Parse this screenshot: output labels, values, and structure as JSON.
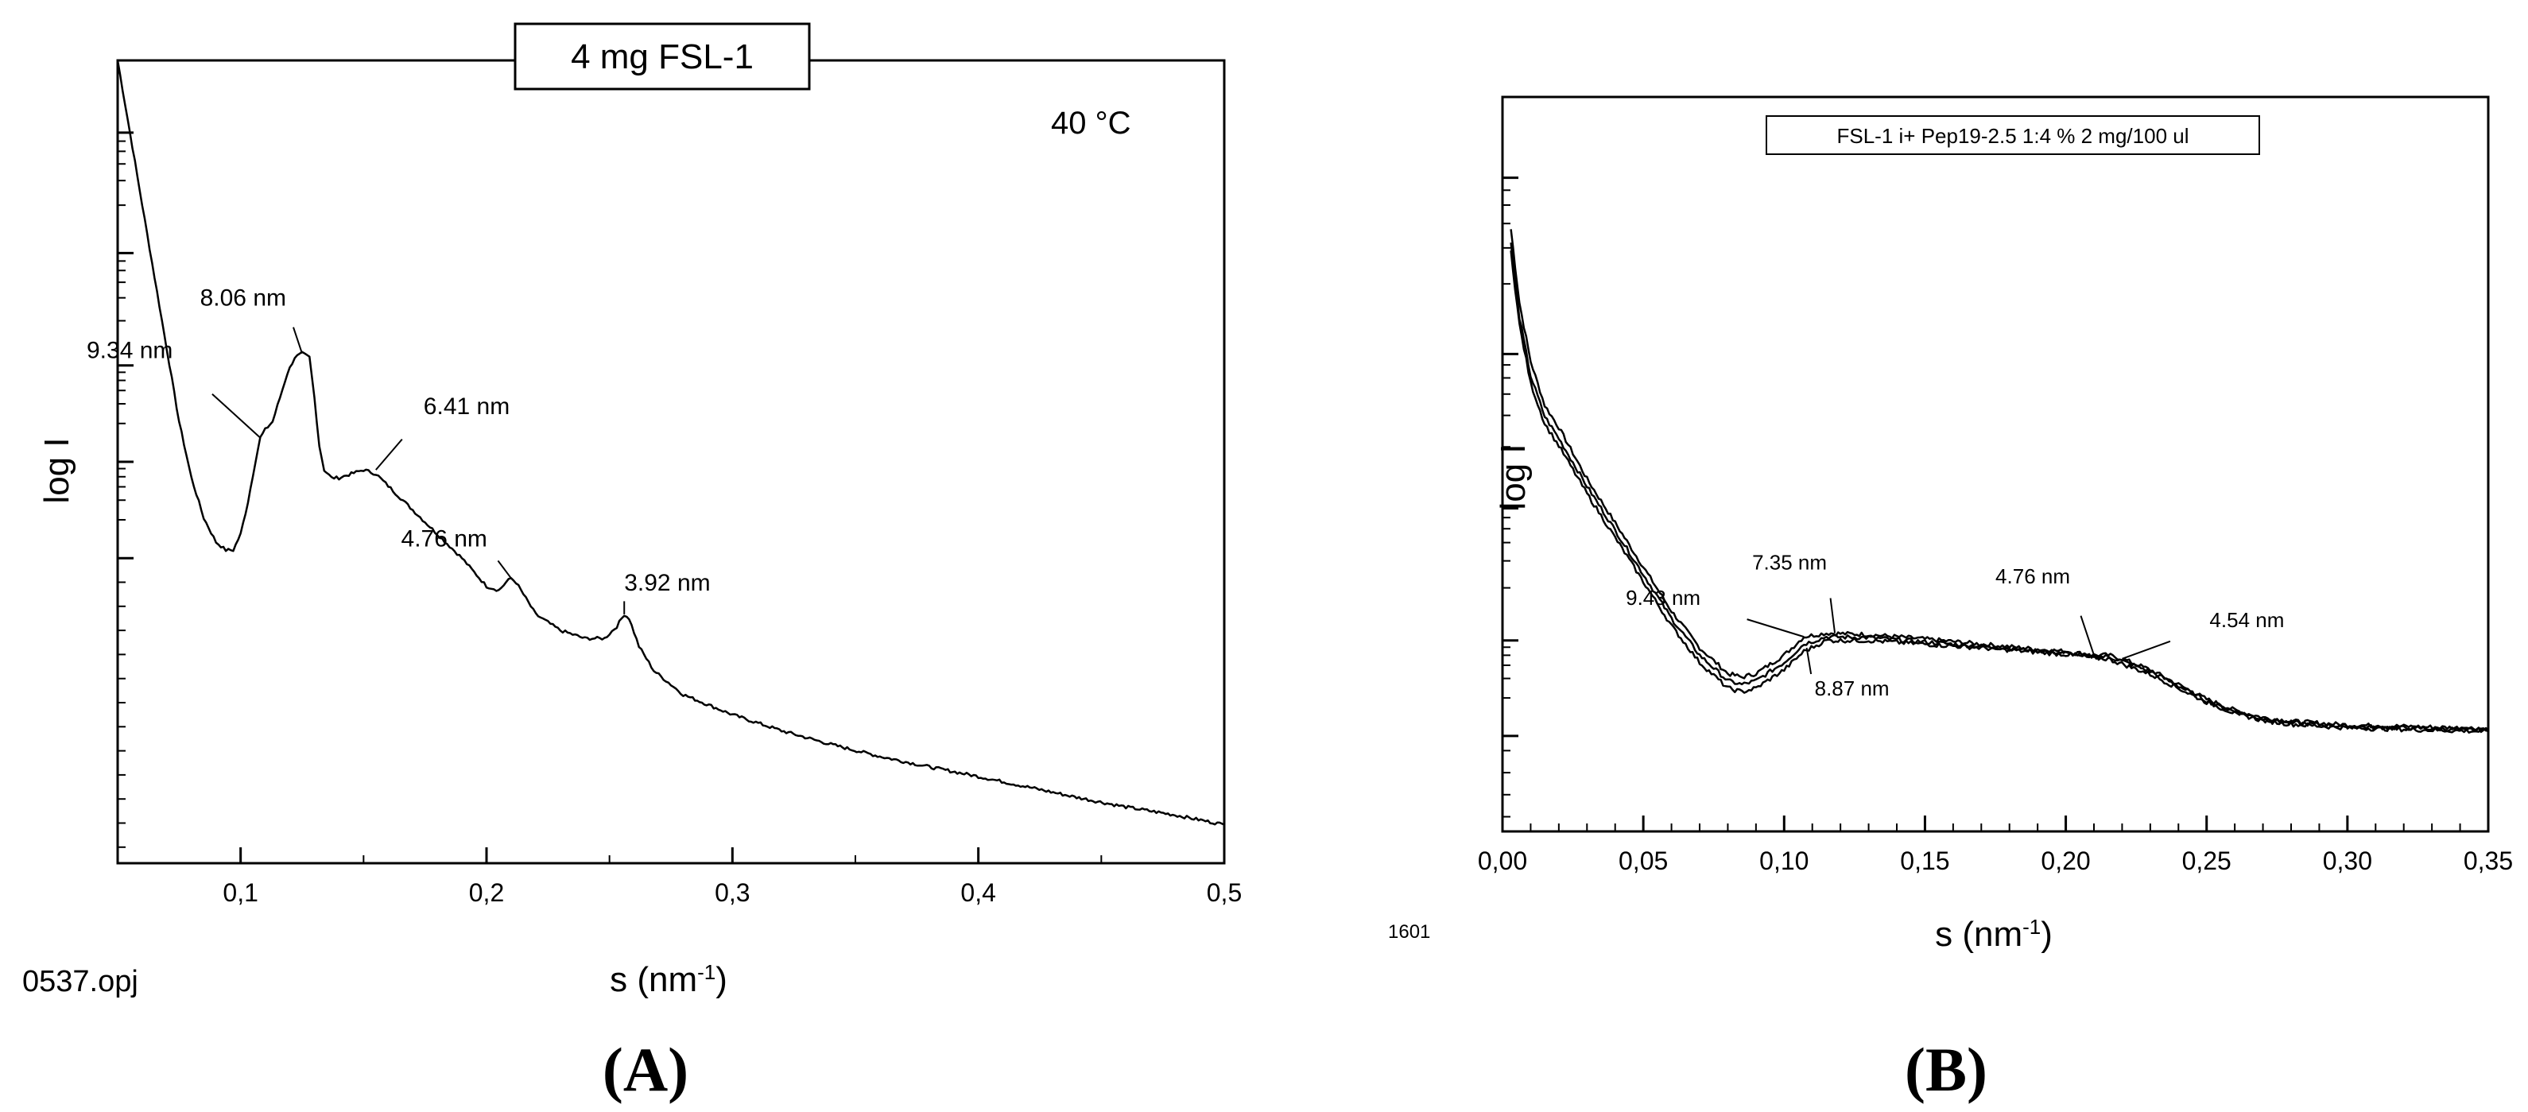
{
  "chart_data": [
    {
      "panel": "(A)",
      "type": "line",
      "title": "4 mg FSL-1",
      "temperature_note": "40 °C",
      "file_note": "0537.opj",
      "xlabel_main": "s (nm",
      "xlabel_sup": "-1",
      "xlabel_end": ")",
      "ylabel": "log I",
      "xlim": [
        0.05,
        0.5
      ],
      "ylim": [
        0,
        1
      ],
      "x_ticks": [
        {
          "value": 0.1,
          "label": "0,1"
        },
        {
          "value": 0.2,
          "label": "0,2"
        },
        {
          "value": 0.3,
          "label": "0,3"
        },
        {
          "value": 0.4,
          "label": "0,4"
        },
        {
          "value": 0.5,
          "label": "0,5"
        }
      ],
      "y_ticks_major": [
        0.38,
        0.5,
        0.62,
        0.76,
        0.91
      ],
      "series": [
        {
          "x": [
            0.05,
            0.055,
            0.06,
            0.065,
            0.07,
            0.075,
            0.08,
            0.085,
            0.09,
            0.094,
            0.097,
            0.1,
            0.103,
            0.106,
            0.108,
            0.11,
            0.113,
            0.116,
            0.119,
            0.122,
            0.125,
            0.128,
            0.13,
            0.132,
            0.134,
            0.137,
            0.14,
            0.145,
            0.15,
            0.155,
            0.16,
            0.17,
            0.18,
            0.19,
            0.2,
            0.205,
            0.208,
            0.21,
            0.212,
            0.215,
            0.22,
            0.23,
            0.24,
            0.248,
            0.253,
            0.256,
            0.258,
            0.262,
            0.268,
            0.28,
            0.3,
            0.32,
            0.34,
            0.36,
            0.38,
            0.4,
            0.42,
            0.44,
            0.46,
            0.48,
            0.5
          ],
          "y": [
            1.0,
            0.91,
            0.82,
            0.73,
            0.64,
            0.55,
            0.48,
            0.43,
            0.4,
            0.39,
            0.39,
            0.41,
            0.45,
            0.5,
            0.53,
            0.54,
            0.55,
            0.58,
            0.61,
            0.63,
            0.635,
            0.63,
            0.58,
            0.52,
            0.49,
            0.48,
            0.48,
            0.485,
            0.49,
            0.485,
            0.47,
            0.44,
            0.41,
            0.38,
            0.345,
            0.34,
            0.35,
            0.355,
            0.35,
            0.335,
            0.31,
            0.29,
            0.28,
            0.28,
            0.295,
            0.31,
            0.305,
            0.27,
            0.24,
            0.21,
            0.185,
            0.165,
            0.148,
            0.133,
            0.12,
            0.108,
            0.095,
            0.082,
            0.07,
            0.06,
            0.048
          ]
        }
      ],
      "annotations": [
        {
          "text": "9.34 nm",
          "x": 0.108,
          "y": 0.53
        },
        {
          "text": "8.06 nm",
          "x": 0.125,
          "y": 0.635
        },
        {
          "text": "6.41 nm",
          "x": 0.155,
          "y": 0.49
        },
        {
          "text": "4.76 nm",
          "x": 0.21,
          "y": 0.355
        },
        {
          "text": "3.92 nm",
          "x": 0.256,
          "y": 0.31
        }
      ]
    },
    {
      "panel": "(B)",
      "type": "line",
      "title": "FSL-1 i+ Pep19-2.5 1:4 % 2 mg/100 ul",
      "file_note": "1601",
      "xlabel_main": "s (nm",
      "xlabel_sup": "-1",
      "xlabel_end": ")",
      "ylabel": "log I",
      "xlim": [
        0.0,
        0.35
      ],
      "ylim": [
        0,
        1
      ],
      "x_ticks": [
        {
          "value": 0.0,
          "label": "0,00"
        },
        {
          "value": 0.05,
          "label": "0,05"
        },
        {
          "value": 0.1,
          "label": "0,10"
        },
        {
          "value": 0.15,
          "label": "0,15"
        },
        {
          "value": 0.2,
          "label": "0,20"
        },
        {
          "value": 0.25,
          "label": "0,25"
        },
        {
          "value": 0.3,
          "label": "0,30"
        },
        {
          "value": 0.35,
          "label": "0,35"
        }
      ],
      "y_ticks_major": [
        0.13,
        0.26,
        0.44,
        0.65,
        0.89
      ],
      "series": [
        {
          "x": [
            0.003,
            0.006,
            0.01,
            0.015,
            0.02,
            0.03,
            0.04,
            0.05,
            0.06,
            0.07,
            0.08,
            0.085,
            0.09,
            0.1,
            0.107,
            0.115,
            0.13,
            0.15,
            0.17,
            0.19,
            0.2,
            0.21,
            0.215,
            0.22,
            0.23,
            0.24,
            0.25,
            0.26,
            0.27,
            0.28,
            0.3,
            0.32,
            0.35
          ],
          "y": [
            0.82,
            0.72,
            0.64,
            0.58,
            0.55,
            0.48,
            0.42,
            0.36,
            0.3,
            0.25,
            0.215,
            0.21,
            0.215,
            0.24,
            0.265,
            0.27,
            0.268,
            0.262,
            0.255,
            0.248,
            0.245,
            0.24,
            0.24,
            0.235,
            0.22,
            0.2,
            0.18,
            0.165,
            0.155,
            0.15,
            0.145,
            0.143,
            0.14
          ]
        },
        {
          "x": [
            0.003,
            0.006,
            0.01,
            0.015,
            0.02,
            0.03,
            0.04,
            0.05,
            0.06,
            0.07,
            0.08,
            0.085,
            0.09,
            0.1,
            0.107,
            0.115,
            0.13,
            0.15,
            0.17,
            0.19,
            0.2,
            0.21,
            0.215,
            0.22,
            0.23,
            0.24,
            0.25,
            0.26,
            0.27,
            0.28,
            0.3,
            0.32,
            0.35
          ],
          "y": [
            0.8,
            0.7,
            0.62,
            0.565,
            0.535,
            0.47,
            0.41,
            0.35,
            0.29,
            0.24,
            0.205,
            0.2,
            0.205,
            0.23,
            0.255,
            0.265,
            0.264,
            0.258,
            0.252,
            0.246,
            0.243,
            0.238,
            0.238,
            0.232,
            0.218,
            0.198,
            0.178,
            0.163,
            0.153,
            0.148,
            0.143,
            0.141,
            0.138
          ]
        },
        {
          "x": [
            0.003,
            0.006,
            0.01,
            0.015,
            0.02,
            0.03,
            0.04,
            0.05,
            0.06,
            0.07,
            0.08,
            0.085,
            0.09,
            0.1,
            0.107,
            0.115,
            0.13,
            0.15,
            0.17,
            0.19,
            0.2,
            0.21,
            0.215,
            0.22,
            0.23,
            0.24,
            0.25,
            0.26,
            0.27,
            0.28,
            0.3,
            0.32,
            0.35
          ],
          "y": [
            0.79,
            0.69,
            0.61,
            0.555,
            0.525,
            0.46,
            0.4,
            0.34,
            0.28,
            0.23,
            0.195,
            0.19,
            0.195,
            0.22,
            0.245,
            0.26,
            0.26,
            0.255,
            0.25,
            0.244,
            0.241,
            0.236,
            0.235,
            0.228,
            0.214,
            0.195,
            0.176,
            0.161,
            0.151,
            0.146,
            0.141,
            0.139,
            0.136
          ]
        }
      ],
      "annotations": [
        {
          "text": "9.43 nm",
          "x": 0.107,
          "y": 0.265
        },
        {
          "text": "7.35 nm",
          "x": 0.118,
          "y": 0.27
        },
        {
          "text": "8.87 nm",
          "x": 0.108,
          "y": 0.25
        },
        {
          "text": "4.76 nm",
          "x": 0.21,
          "y": 0.24
        },
        {
          "text": "4.54 nm",
          "x": 0.22,
          "y": 0.235
        }
      ]
    }
  ]
}
